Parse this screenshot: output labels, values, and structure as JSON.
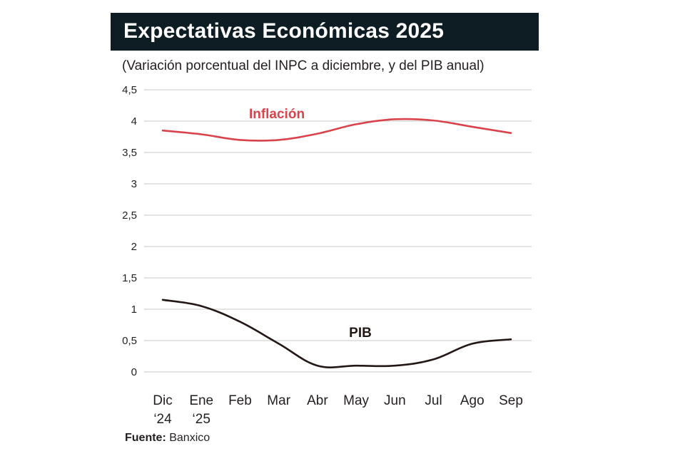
{
  "title": "Expectativas Económicas 2025",
  "subtitle": "(Variación porcentual del INPC a diciembre, y del PIB anual)",
  "source": {
    "label": "Fuente:",
    "value": "Banxico"
  },
  "colors": {
    "inflacion": "#d9434b",
    "pib": "#231815",
    "grid": "#c8c8c8",
    "title_bg": "#0e1d24"
  },
  "chart_data": {
    "type": "line",
    "categories": [
      [
        "Dic",
        "‘24"
      ],
      [
        "Ene",
        "‘25"
      ],
      [
        "Feb"
      ],
      [
        "Mar"
      ],
      [
        "Abr"
      ],
      [
        "May"
      ],
      [
        "Jun"
      ],
      [
        "Jul"
      ],
      [
        "Ago"
      ],
      [
        "Sep"
      ]
    ],
    "y_ticks": [
      "0",
      "0,5",
      "1",
      "1,5",
      "2",
      "2,5",
      "3",
      "3,5",
      "4",
      "4,5"
    ],
    "ylim": [
      0,
      4.5
    ],
    "grid": true,
    "series": [
      {
        "name": "Inflación",
        "color_key": "inflacion",
        "values": [
          3.85,
          3.79,
          3.7,
          3.7,
          3.8,
          3.95,
          4.03,
          4.01,
          3.91,
          3.81
        ]
      },
      {
        "name": "PIB",
        "color_key": "pib",
        "values": [
          1.15,
          1.05,
          0.8,
          0.45,
          0.1,
          0.1,
          0.1,
          0.2,
          0.45,
          0.52
        ]
      }
    ]
  }
}
